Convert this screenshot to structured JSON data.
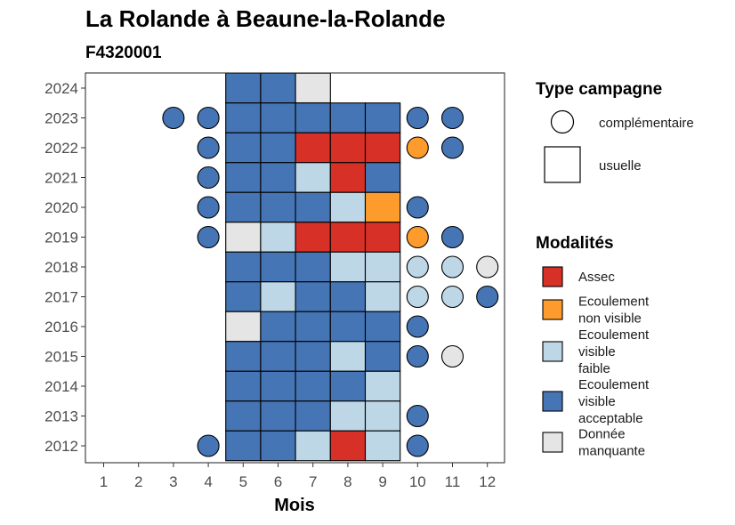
{
  "chart_data": {
    "type": "heatmap",
    "title": "La Rolande à Beaune-la-Rolande",
    "subtitle": "F4320001",
    "xlabel": "Mois",
    "ylabel": "",
    "x_categories": [
      "1",
      "2",
      "3",
      "4",
      "5",
      "6",
      "7",
      "8",
      "9",
      "10",
      "11",
      "12"
    ],
    "y_categories": [
      "2012",
      "2013",
      "2014",
      "2015",
      "2016",
      "2017",
      "2018",
      "2019",
      "2020",
      "2021",
      "2022",
      "2023",
      "2024"
    ],
    "legend_shape": {
      "title": "Type campagne",
      "items": [
        {
          "key": "complementaire",
          "label": "complémentaire",
          "shape": "circle"
        },
        {
          "key": "usuelle",
          "label": "usuelle",
          "shape": "square"
        }
      ]
    },
    "legend_fill": {
      "title": "Modalités",
      "items": [
        {
          "key": "A",
          "label_lines": [
            "Assec"
          ],
          "color": "#d73027"
        },
        {
          "key": "N",
          "label_lines": [
            "Ecoulement",
            "non visible"
          ],
          "color": "#fd9c2c"
        },
        {
          "key": "F",
          "label_lines": [
            "Ecoulement",
            "visible",
            "faible"
          ],
          "color": "#bdd7e7"
        },
        {
          "key": "E",
          "label_lines": [
            "Ecoulement",
            "visible",
            "acceptable"
          ],
          "color": "#4575b4"
        },
        {
          "key": "M",
          "label_lines": [
            "Donnée",
            "manquante"
          ],
          "color": "#e5e5e5"
        }
      ]
    },
    "observations": [
      {
        "year": 2024,
        "month": 5,
        "type": "usuelle",
        "value": "E"
      },
      {
        "year": 2024,
        "month": 6,
        "type": "usuelle",
        "value": "E"
      },
      {
        "year": 2024,
        "month": 7,
        "type": "usuelle",
        "value": "M"
      },
      {
        "year": 2023,
        "month": 3,
        "type": "complementaire",
        "value": "E"
      },
      {
        "year": 2023,
        "month": 4,
        "type": "complementaire",
        "value": "E"
      },
      {
        "year": 2023,
        "month": 5,
        "type": "usuelle",
        "value": "E"
      },
      {
        "year": 2023,
        "month": 6,
        "type": "usuelle",
        "value": "E"
      },
      {
        "year": 2023,
        "month": 7,
        "type": "usuelle",
        "value": "E"
      },
      {
        "year": 2023,
        "month": 8,
        "type": "usuelle",
        "value": "E"
      },
      {
        "year": 2023,
        "month": 9,
        "type": "usuelle",
        "value": "E"
      },
      {
        "year": 2023,
        "month": 10,
        "type": "complementaire",
        "value": "E"
      },
      {
        "year": 2023,
        "month": 11,
        "type": "complementaire",
        "value": "E"
      },
      {
        "year": 2022,
        "month": 4,
        "type": "complementaire",
        "value": "E"
      },
      {
        "year": 2022,
        "month": 5,
        "type": "usuelle",
        "value": "E"
      },
      {
        "year": 2022,
        "month": 6,
        "type": "usuelle",
        "value": "E"
      },
      {
        "year": 2022,
        "month": 7,
        "type": "usuelle",
        "value": "A"
      },
      {
        "year": 2022,
        "month": 8,
        "type": "usuelle",
        "value": "A"
      },
      {
        "year": 2022,
        "month": 9,
        "type": "usuelle",
        "value": "A"
      },
      {
        "year": 2022,
        "month": 10,
        "type": "complementaire",
        "value": "N"
      },
      {
        "year": 2022,
        "month": 11,
        "type": "complementaire",
        "value": "E"
      },
      {
        "year": 2021,
        "month": 4,
        "type": "complementaire",
        "value": "E"
      },
      {
        "year": 2021,
        "month": 5,
        "type": "usuelle",
        "value": "E"
      },
      {
        "year": 2021,
        "month": 6,
        "type": "usuelle",
        "value": "E"
      },
      {
        "year": 2021,
        "month": 7,
        "type": "usuelle",
        "value": "F"
      },
      {
        "year": 2021,
        "month": 8,
        "type": "usuelle",
        "value": "A"
      },
      {
        "year": 2021,
        "month": 9,
        "type": "usuelle",
        "value": "E"
      },
      {
        "year": 2020,
        "month": 4,
        "type": "complementaire",
        "value": "E"
      },
      {
        "year": 2020,
        "month": 5,
        "type": "usuelle",
        "value": "E"
      },
      {
        "year": 2020,
        "month": 6,
        "type": "usuelle",
        "value": "E"
      },
      {
        "year": 2020,
        "month": 7,
        "type": "usuelle",
        "value": "E"
      },
      {
        "year": 2020,
        "month": 8,
        "type": "usuelle",
        "value": "F"
      },
      {
        "year": 2020,
        "month": 9,
        "type": "usuelle",
        "value": "N"
      },
      {
        "year": 2020,
        "month": 10,
        "type": "complementaire",
        "value": "E"
      },
      {
        "year": 2019,
        "month": 4,
        "type": "complementaire",
        "value": "E"
      },
      {
        "year": 2019,
        "month": 5,
        "type": "usuelle",
        "value": "M"
      },
      {
        "year": 2019,
        "month": 6,
        "type": "usuelle",
        "value": "F"
      },
      {
        "year": 2019,
        "month": 7,
        "type": "usuelle",
        "value": "A"
      },
      {
        "year": 2019,
        "month": 8,
        "type": "usuelle",
        "value": "A"
      },
      {
        "year": 2019,
        "month": 9,
        "type": "usuelle",
        "value": "A"
      },
      {
        "year": 2019,
        "month": 10,
        "type": "complementaire",
        "value": "N"
      },
      {
        "year": 2019,
        "month": 11,
        "type": "complementaire",
        "value": "E"
      },
      {
        "year": 2018,
        "month": 5,
        "type": "usuelle",
        "value": "E"
      },
      {
        "year": 2018,
        "month": 6,
        "type": "usuelle",
        "value": "E"
      },
      {
        "year": 2018,
        "month": 7,
        "type": "usuelle",
        "value": "E"
      },
      {
        "year": 2018,
        "month": 8,
        "type": "usuelle",
        "value": "F"
      },
      {
        "year": 2018,
        "month": 9,
        "type": "usuelle",
        "value": "F"
      },
      {
        "year": 2018,
        "month": 10,
        "type": "complementaire",
        "value": "F"
      },
      {
        "year": 2018,
        "month": 11,
        "type": "complementaire",
        "value": "F"
      },
      {
        "year": 2018,
        "month": 12,
        "type": "complementaire",
        "value": "M"
      },
      {
        "year": 2017,
        "month": 5,
        "type": "usuelle",
        "value": "E"
      },
      {
        "year": 2017,
        "month": 6,
        "type": "usuelle",
        "value": "F"
      },
      {
        "year": 2017,
        "month": 7,
        "type": "usuelle",
        "value": "E"
      },
      {
        "year": 2017,
        "month": 8,
        "type": "usuelle",
        "value": "E"
      },
      {
        "year": 2017,
        "month": 9,
        "type": "usuelle",
        "value": "F"
      },
      {
        "year": 2017,
        "month": 10,
        "type": "complementaire",
        "value": "F"
      },
      {
        "year": 2017,
        "month": 11,
        "type": "complementaire",
        "value": "F"
      },
      {
        "year": 2017,
        "month": 12,
        "type": "complementaire",
        "value": "E"
      },
      {
        "year": 2016,
        "month": 5,
        "type": "usuelle",
        "value": "M"
      },
      {
        "year": 2016,
        "month": 6,
        "type": "usuelle",
        "value": "E"
      },
      {
        "year": 2016,
        "month": 7,
        "type": "usuelle",
        "value": "E"
      },
      {
        "year": 2016,
        "month": 8,
        "type": "usuelle",
        "value": "E"
      },
      {
        "year": 2016,
        "month": 9,
        "type": "usuelle",
        "value": "E"
      },
      {
        "year": 2016,
        "month": 10,
        "type": "complementaire",
        "value": "E"
      },
      {
        "year": 2015,
        "month": 5,
        "type": "usuelle",
        "value": "E"
      },
      {
        "year": 2015,
        "month": 6,
        "type": "usuelle",
        "value": "E"
      },
      {
        "year": 2015,
        "month": 7,
        "type": "usuelle",
        "value": "E"
      },
      {
        "year": 2015,
        "month": 8,
        "type": "usuelle",
        "value": "F"
      },
      {
        "year": 2015,
        "month": 9,
        "type": "usuelle",
        "value": "E"
      },
      {
        "year": 2015,
        "month": 10,
        "type": "complementaire",
        "value": "E"
      },
      {
        "year": 2015,
        "month": 11,
        "type": "complementaire",
        "value": "M"
      },
      {
        "year": 2014,
        "month": 5,
        "type": "usuelle",
        "value": "E"
      },
      {
        "year": 2014,
        "month": 6,
        "type": "usuelle",
        "value": "E"
      },
      {
        "year": 2014,
        "month": 7,
        "type": "usuelle",
        "value": "E"
      },
      {
        "year": 2014,
        "month": 8,
        "type": "usuelle",
        "value": "E"
      },
      {
        "year": 2014,
        "month": 9,
        "type": "usuelle",
        "value": "F"
      },
      {
        "year": 2013,
        "month": 5,
        "type": "usuelle",
        "value": "E"
      },
      {
        "year": 2013,
        "month": 6,
        "type": "usuelle",
        "value": "E"
      },
      {
        "year": 2013,
        "month": 7,
        "type": "usuelle",
        "value": "E"
      },
      {
        "year": 2013,
        "month": 8,
        "type": "usuelle",
        "value": "F"
      },
      {
        "year": 2013,
        "month": 9,
        "type": "usuelle",
        "value": "F"
      },
      {
        "year": 2013,
        "month": 10,
        "type": "complementaire",
        "value": "E"
      },
      {
        "year": 2012,
        "month": 4,
        "type": "complementaire",
        "value": "E"
      },
      {
        "year": 2012,
        "month": 5,
        "type": "usuelle",
        "value": "E"
      },
      {
        "year": 2012,
        "month": 6,
        "type": "usuelle",
        "value": "E"
      },
      {
        "year": 2012,
        "month": 7,
        "type": "usuelle",
        "value": "F"
      },
      {
        "year": 2012,
        "month": 8,
        "type": "usuelle",
        "value": "A"
      },
      {
        "year": 2012,
        "month": 9,
        "type": "usuelle",
        "value": "F"
      },
      {
        "year": 2012,
        "month": 10,
        "type": "complementaire",
        "value": "E"
      }
    ]
  }
}
